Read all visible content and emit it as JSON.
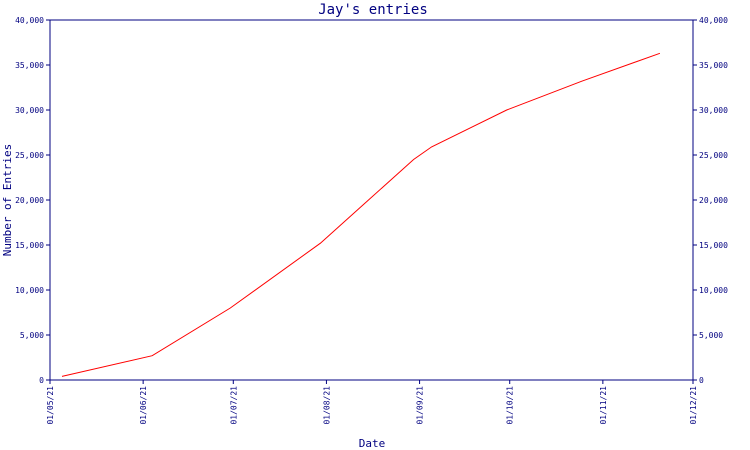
{
  "chart_data": {
    "type": "line",
    "title": "Jay's entries",
    "xlabel": "Date",
    "ylabel": "Number of Entries",
    "x_ticks": [
      "01/05/21",
      "01/06/21",
      "01/07/21",
      "01/08/21",
      "01/09/21",
      "01/10/21",
      "01/11/21",
      "01/12/21"
    ],
    "xlim": [
      "2021-05-01",
      "2021-12-01"
    ],
    "ylim": [
      0,
      40000
    ],
    "y_ticks": [
      0,
      5000,
      10000,
      15000,
      20000,
      25000,
      30000,
      35000,
      40000
    ],
    "y_tick_labels": [
      "0",
      "5,000",
      "10,000",
      "15,000",
      "20,000",
      "25,000",
      "30,000",
      "35,000",
      "40,000"
    ],
    "right_axis": true,
    "grid": false,
    "series": [
      {
        "color": "#ff0000",
        "x": [
          "2021-05-05",
          "2021-06-04",
          "2021-06-30",
          "2021-07-30",
          "2021-08-15",
          "2021-08-30",
          "2021-09-05",
          "2021-09-30",
          "2021-10-25",
          "2021-11-20"
        ],
        "y": [
          400,
          2700,
          8000,
          15200,
          20000,
          24500,
          25900,
          30000,
          33200,
          36300
        ]
      }
    ]
  }
}
